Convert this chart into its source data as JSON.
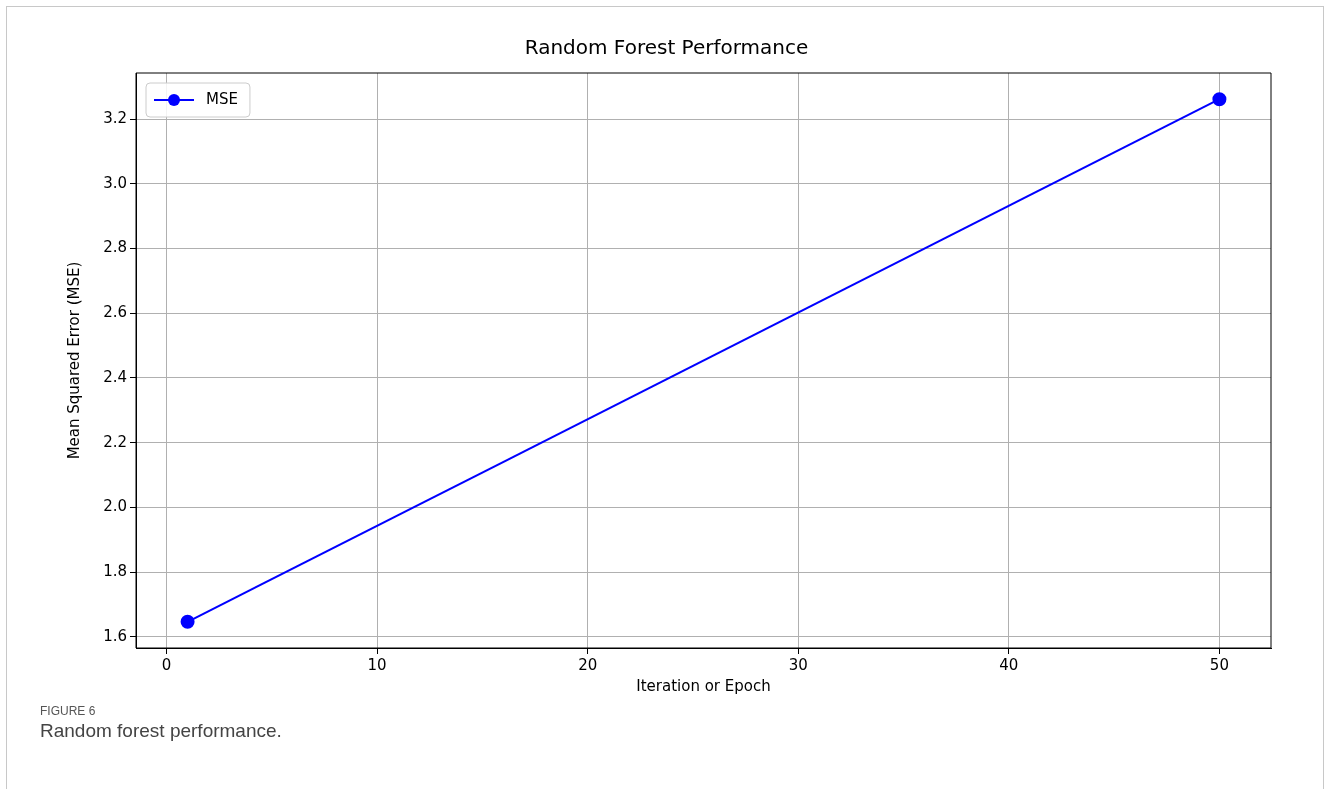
{
  "chart_data": {
    "type": "line",
    "title": "Random Forest Performance",
    "xlabel": "Iteration or Epoch",
    "ylabel": "Mean Squared Error (MSE)",
    "x": [
      1,
      50
    ],
    "series": [
      {
        "name": "MSE",
        "color": "#0000ff",
        "values": [
          1.646,
          3.262
        ]
      }
    ],
    "xlim": [
      -1.45,
      52.45
    ],
    "xticks": [
      0,
      10,
      20,
      30,
      40,
      50
    ],
    "ylim": [
      1.565,
      3.343
    ],
    "yticks": [
      {
        "value": 1.6,
        "label": "1.6"
      },
      {
        "value": 1.8,
        "label": "1.8"
      },
      {
        "value": 2.0,
        "label": "2.0"
      },
      {
        "value": 2.2,
        "label": "2.2"
      },
      {
        "value": 2.4,
        "label": "2.4"
      },
      {
        "value": 2.6,
        "label": "2.6"
      },
      {
        "value": 2.8,
        "label": "2.8"
      },
      {
        "value": 3.0,
        "label": "3.0"
      },
      {
        "value": 3.2,
        "label": "3.2"
      }
    ],
    "grid": true,
    "legend": "top left",
    "marker": "circle",
    "line_style": "solid",
    "annotations": [
      "FIGURE 6",
      "Random forest performance."
    ]
  }
}
